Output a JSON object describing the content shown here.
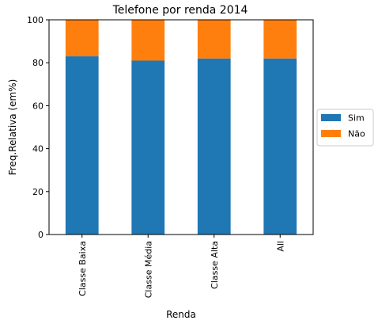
{
  "chart_data": {
    "type": "bar",
    "stacked": true,
    "title": "Telefone por renda 2014",
    "xlabel": "Renda",
    "ylabel": "Freq.Relativa (em%)",
    "categories": [
      "Classe Baixa",
      "Classe Média",
      "Classe Alta",
      "All"
    ],
    "series": [
      {
        "name": "Sim",
        "values": [
          83,
          81,
          82,
          82
        ],
        "color": "#1f77b4"
      },
      {
        "name": "Não",
        "values": [
          17,
          19,
          18,
          18
        ],
        "color": "#ff7f0e"
      }
    ],
    "ylim": [
      0,
      100
    ],
    "yticks": [
      0,
      20,
      40,
      60,
      80,
      100
    ],
    "grid": false,
    "legend_position": "right"
  }
}
